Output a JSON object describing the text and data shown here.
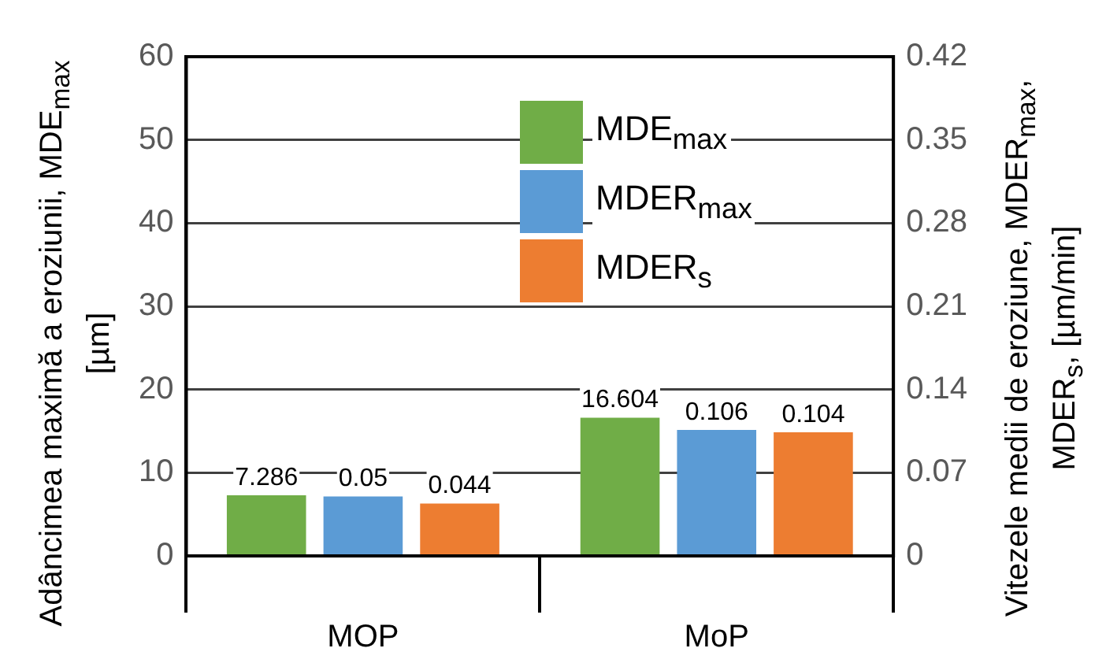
{
  "chart_data": {
    "type": "bar",
    "categories": [
      "MOP",
      "MoP"
    ],
    "series": [
      {
        "name": "MDE$_{max}$",
        "color": "#70ad47",
        "values": [
          7.286,
          16.604
        ]
      },
      {
        "name": "MDER$_{max}$",
        "color": "#5b9bd5",
        "values": [
          0.05,
          0.106
        ],
        "axis": "y2"
      },
      {
        "name": "MDER$_{s}$",
        "color": "#ed7d31",
        "values": [
          0.044,
          0.104
        ],
        "axis": "y2"
      }
    ],
    "ylabel": "Adâncimea maximă a eroziunii, MDE$_{max}$ [µm]",
    "y2label": "Vitezele medii de eroziune, MDER$_{max}$, MDER$_{s}$, [µm/min]",
    "ylim": [
      0,
      60
    ],
    "yticks": [
      0,
      10,
      20,
      30,
      40,
      50,
      60
    ],
    "y2lim": [
      0,
      0.42
    ],
    "y2ticks": [
      0,
      0.07,
      0.14,
      0.21,
      0.28,
      0.35,
      0.42
    ],
    "grid": "y",
    "legend": "top right",
    "data_labels": true
  }
}
